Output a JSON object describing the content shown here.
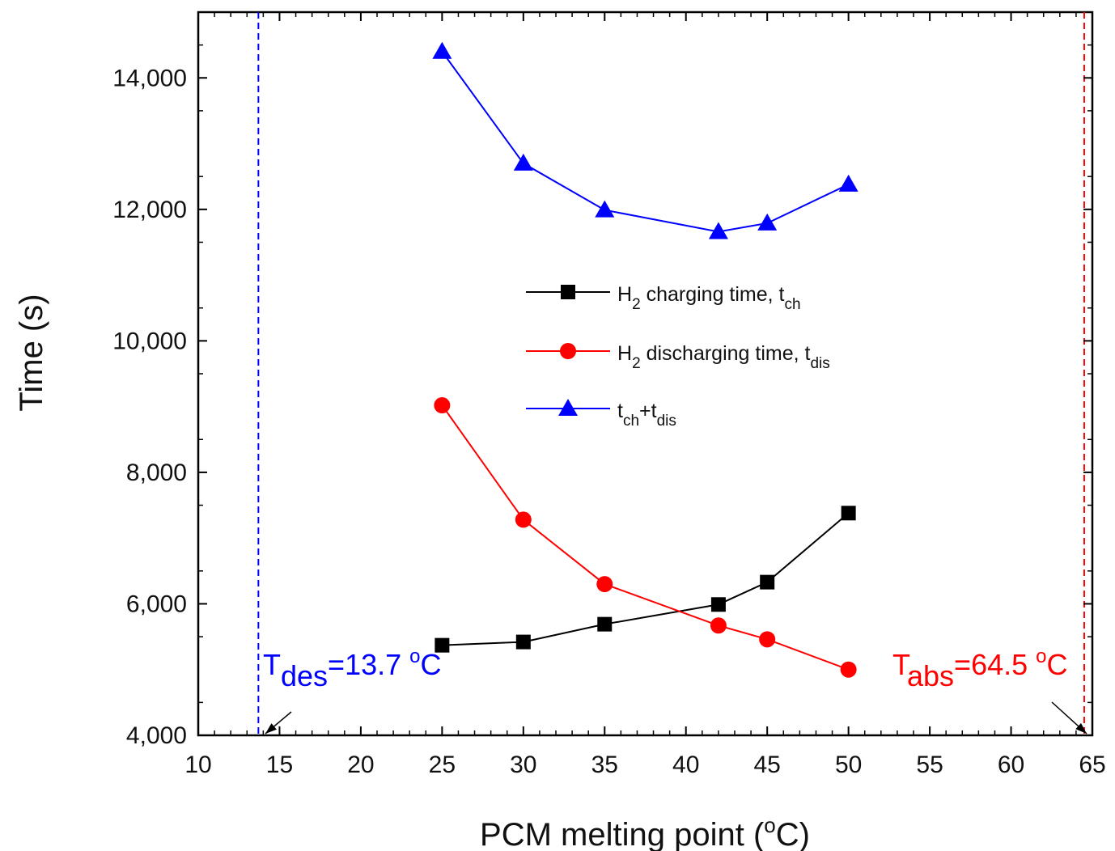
{
  "chart_data": {
    "type": "line",
    "title": "",
    "xlabel": "PCM melting point (°C)",
    "ylabel": "Time (s)",
    "xlim": [
      10,
      65
    ],
    "ylim": [
      4000,
      15000
    ],
    "x_ticks": [
      10,
      15,
      20,
      25,
      30,
      35,
      40,
      45,
      50,
      55,
      60,
      65
    ],
    "y_ticks": [
      4000,
      6000,
      8000,
      10000,
      12000,
      14000
    ],
    "x_tick_labels": [
      "10",
      "15",
      "20",
      "25",
      "30",
      "35",
      "40",
      "45",
      "50",
      "55",
      "60",
      "65"
    ],
    "y_tick_labels": [
      "4,000",
      "6,000",
      "8,000",
      "10,000",
      "12,000",
      "14,000"
    ],
    "grid": false,
    "legend_position": "center",
    "x": [
      25,
      30,
      35,
      42,
      45,
      50
    ],
    "series": [
      {
        "name": "H2 charging time, tch",
        "legend": {
          "main": "H",
          "sub1": "2",
          "mid": " charging time, t",
          "sub2": "ch"
        },
        "color": "#000000",
        "marker": "square",
        "values": [
          5370,
          5420,
          5690,
          5990,
          6330,
          7380
        ]
      },
      {
        "name": "H2 discharging time, tdis",
        "legend": {
          "main": "H",
          "sub1": "2",
          "mid": " discharging time, t",
          "sub2": "dis"
        },
        "color": "#ff0000",
        "marker": "circle",
        "values": [
          9020,
          7280,
          6300,
          5670,
          5460,
          5000
        ]
      },
      {
        "name": "tch+tdis",
        "legend": {
          "main": "t",
          "sub1": "ch",
          "mid": "+t",
          "sub2": "dis"
        },
        "color": "#0000ff",
        "marker": "triangle",
        "values": [
          14400,
          12700,
          11990,
          11660,
          11790,
          12380
        ]
      }
    ],
    "reference_lines": [
      {
        "x": 13.7,
        "color": "#0000ff",
        "label": {
          "base": "T",
          "sub": "des",
          "value": "=13.7 ",
          "sup": "o",
          "unit": "C"
        }
      },
      {
        "x": 64.5,
        "color": "#ff0000",
        "label": {
          "base": "T",
          "sub": "abs",
          "value": "=64.5 ",
          "sup": "o",
          "unit": "C"
        }
      }
    ]
  }
}
